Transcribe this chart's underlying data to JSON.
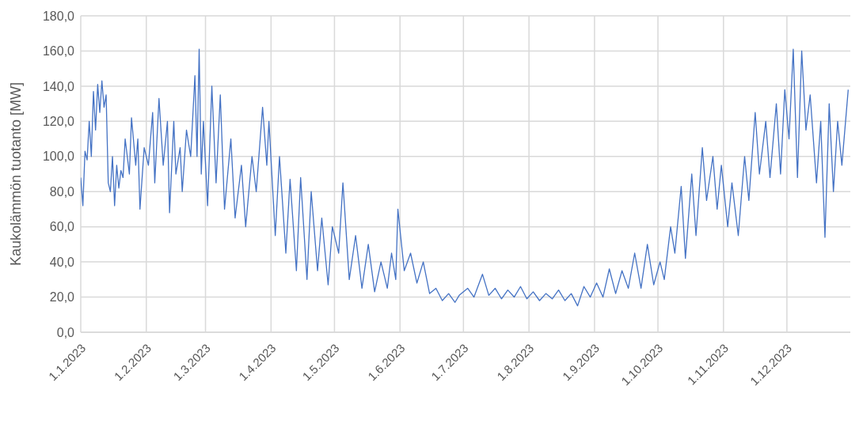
{
  "chart_data": {
    "type": "line",
    "ylabel": "Kaukolämmön tuotanto [MW]",
    "grid": true,
    "marker": "none",
    "line_style": "solid",
    "xlim": [
      "2023-01-01",
      "2023-12-31"
    ],
    "xticks": [
      {
        "value": "2023-01-01",
        "label": "1.1.2023"
      },
      {
        "value": "2023-02-01",
        "label": "1.2.2023"
      },
      {
        "value": "2023-03-01",
        "label": "1.3.2023"
      },
      {
        "value": "2023-04-01",
        "label": "1.4.2023"
      },
      {
        "value": "2023-05-01",
        "label": "1.5.2023"
      },
      {
        "value": "2023-06-01",
        "label": "1.6.2023"
      },
      {
        "value": "2023-07-01",
        "label": "1.7.2023"
      },
      {
        "value": "2023-08-01",
        "label": "1.8.2023"
      },
      {
        "value": "2023-09-01",
        "label": "1.9.2023"
      },
      {
        "value": "2023-10-01",
        "label": "1.10.2023"
      },
      {
        "value": "2023-11-01",
        "label": "1.11.2023"
      },
      {
        "value": "2023-12-01",
        "label": "1.12.2023"
      }
    ],
    "ylim": [
      0,
      180
    ],
    "yticks": [
      {
        "value": 0,
        "label": "0,0"
      },
      {
        "value": 20,
        "label": "20,0"
      },
      {
        "value": 40,
        "label": "40,0"
      },
      {
        "value": 60,
        "label": "60,0"
      },
      {
        "value": 80,
        "label": "80,0"
      },
      {
        "value": 100,
        "label": "100,0"
      },
      {
        "value": 120,
        "label": "120,0"
      },
      {
        "value": 140,
        "label": "140,0"
      },
      {
        "value": 160,
        "label": "160,0"
      },
      {
        "value": 180,
        "label": "180,0"
      }
    ],
    "x": [
      "2023-01-01",
      "2023-01-02",
      "2023-01-03",
      "2023-01-04",
      "2023-01-05",
      "2023-01-06",
      "2023-01-07",
      "2023-01-08",
      "2023-01-09",
      "2023-01-10",
      "2023-01-11",
      "2023-01-12",
      "2023-01-13",
      "2023-01-14",
      "2023-01-15",
      "2023-01-16",
      "2023-01-17",
      "2023-01-18",
      "2023-01-19",
      "2023-01-20",
      "2023-01-21",
      "2023-01-22",
      "2023-01-24",
      "2023-01-25",
      "2023-01-27",
      "2023-01-28",
      "2023-01-29",
      "2023-01-31",
      "2023-02-02",
      "2023-02-04",
      "2023-02-05",
      "2023-02-07",
      "2023-02-09",
      "2023-02-11",
      "2023-02-12",
      "2023-02-14",
      "2023-02-15",
      "2023-02-17",
      "2023-02-18",
      "2023-02-20",
      "2023-02-22",
      "2023-02-24",
      "2023-02-25",
      "2023-02-26",
      "2023-02-27",
      "2023-02-28",
      "2023-03-02",
      "2023-03-04",
      "2023-03-06",
      "2023-03-08",
      "2023-03-10",
      "2023-03-13",
      "2023-03-15",
      "2023-03-18",
      "2023-03-20",
      "2023-03-23",
      "2023-03-25",
      "2023-03-28",
      "2023-03-30",
      "2023-03-31",
      "2023-04-03",
      "2023-04-05",
      "2023-04-08",
      "2023-04-10",
      "2023-04-13",
      "2023-04-15",
      "2023-04-18",
      "2023-04-20",
      "2023-04-23",
      "2023-04-25",
      "2023-04-28",
      "2023-04-30",
      "2023-05-03",
      "2023-05-05",
      "2023-05-08",
      "2023-05-11",
      "2023-05-14",
      "2023-05-17",
      "2023-05-20",
      "2023-05-23",
      "2023-05-26",
      "2023-05-28",
      "2023-05-30",
      "2023-05-31",
      "2023-06-03",
      "2023-06-06",
      "2023-06-09",
      "2023-06-12",
      "2023-06-15",
      "2023-06-18",
      "2023-06-21",
      "2023-06-24",
      "2023-06-27",
      "2023-06-29",
      "2023-07-03",
      "2023-07-06",
      "2023-07-10",
      "2023-07-13",
      "2023-07-16",
      "2023-07-19",
      "2023-07-22",
      "2023-07-25",
      "2023-07-28",
      "2023-07-31",
      "2023-08-03",
      "2023-08-06",
      "2023-08-09",
      "2023-08-12",
      "2023-08-15",
      "2023-08-18",
      "2023-08-21",
      "2023-08-24",
      "2023-08-27",
      "2023-08-30",
      "2023-09-02",
      "2023-09-05",
      "2023-09-08",
      "2023-09-11",
      "2023-09-14",
      "2023-09-17",
      "2023-09-20",
      "2023-09-23",
      "2023-09-26",
      "2023-09-29",
      "2023-10-02",
      "2023-10-04",
      "2023-10-07",
      "2023-10-09",
      "2023-10-12",
      "2023-10-14",
      "2023-10-17",
      "2023-10-19",
      "2023-10-22",
      "2023-10-24",
      "2023-10-27",
      "2023-10-29",
      "2023-10-31",
      "2023-11-03",
      "2023-11-05",
      "2023-11-08",
      "2023-11-11",
      "2023-11-13",
      "2023-11-16",
      "2023-11-18",
      "2023-11-21",
      "2023-11-23",
      "2023-11-26",
      "2023-11-28",
      "2023-11-30",
      "2023-12-02",
      "2023-12-04",
      "2023-12-06",
      "2023-12-08",
      "2023-12-10",
      "2023-12-12",
      "2023-12-15",
      "2023-12-17",
      "2023-12-19",
      "2023-12-21",
      "2023-12-23",
      "2023-12-25",
      "2023-12-27",
      "2023-12-30"
    ],
    "series": [
      {
        "color": "#4472c4",
        "values": [
          88,
          72,
          103,
          98,
          120,
          100,
          137,
          115,
          141,
          125,
          143,
          128,
          135,
          85,
          80,
          100,
          72,
          95,
          82,
          92,
          88,
          110,
          90,
          122,
          95,
          110,
          70,
          105,
          95,
          125,
          85,
          133,
          95,
          120,
          68,
          120,
          90,
          105,
          80,
          115,
          100,
          146,
          100,
          161,
          90,
          120,
          72,
          140,
          85,
          135,
          70,
          110,
          65,
          95,
          60,
          100,
          80,
          128,
          95,
          120,
          55,
          100,
          45,
          87,
          35,
          88,
          30,
          80,
          35,
          65,
          27,
          60,
          45,
          85,
          30,
          55,
          25,
          50,
          23,
          40,
          25,
          45,
          30,
          70,
          35,
          45,
          28,
          40,
          22,
          25,
          18,
          22,
          17,
          21,
          25,
          20,
          33,
          21,
          25,
          19,
          24,
          20,
          26,
          19,
          23,
          18,
          22,
          19,
          24,
          18,
          22,
          15,
          26,
          20,
          28,
          20,
          36,
          22,
          35,
          25,
          45,
          25,
          50,
          27,
          40,
          30,
          60,
          45,
          83,
          42,
          90,
          55,
          105,
          75,
          100,
          70,
          95,
          60,
          85,
          55,
          100,
          75,
          125,
          90,
          120,
          88,
          130,
          90,
          138,
          110,
          161,
          88,
          160,
          115,
          135,
          85,
          120,
          54,
          130,
          80,
          120,
          95,
          138
        ]
      }
    ]
  }
}
